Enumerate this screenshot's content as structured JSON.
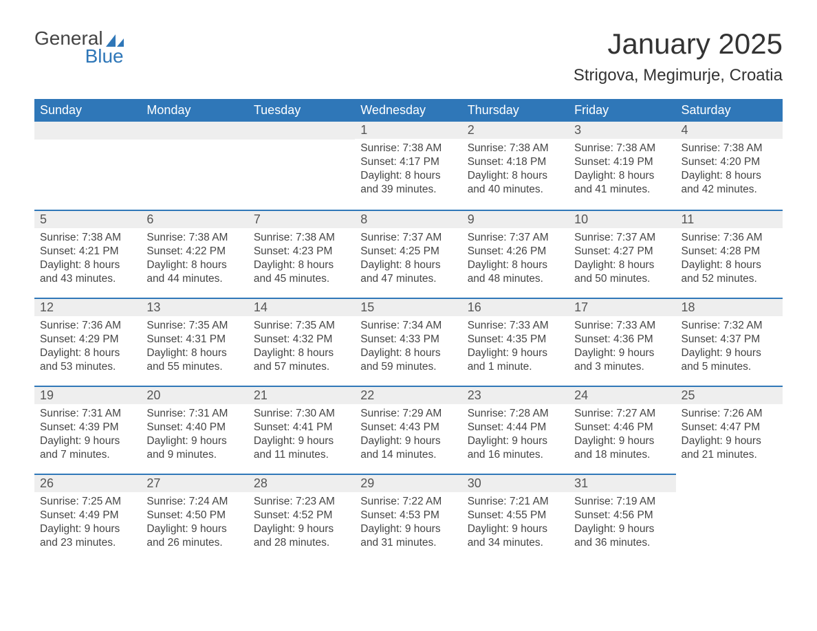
{
  "logo": {
    "top": "General",
    "bottom": "Blue"
  },
  "title": "January 2025",
  "location": "Strigova, Megimurje, Croatia",
  "colors": {
    "header_bg": "#2f77b8",
    "header_text": "#ffffff",
    "daynum_bg": "#eeeeee",
    "daynum_border": "#2f77b8",
    "text": "#444444",
    "title_text": "#333333",
    "background": "#ffffff"
  },
  "fonts": {
    "title_size": 42,
    "location_size": 24,
    "dayheader_size": 18,
    "daynum_size": 18,
    "body_size": 15.5
  },
  "day_names": [
    "Sunday",
    "Monday",
    "Tuesday",
    "Wednesday",
    "Thursday",
    "Friday",
    "Saturday"
  ],
  "weeks": [
    [
      null,
      null,
      null,
      {
        "n": "1",
        "sr": "7:38 AM",
        "ss": "4:17 PM",
        "dl": "8 hours and 39 minutes."
      },
      {
        "n": "2",
        "sr": "7:38 AM",
        "ss": "4:18 PM",
        "dl": "8 hours and 40 minutes."
      },
      {
        "n": "3",
        "sr": "7:38 AM",
        "ss": "4:19 PM",
        "dl": "8 hours and 41 minutes."
      },
      {
        "n": "4",
        "sr": "7:38 AM",
        "ss": "4:20 PM",
        "dl": "8 hours and 42 minutes."
      }
    ],
    [
      {
        "n": "5",
        "sr": "7:38 AM",
        "ss": "4:21 PM",
        "dl": "8 hours and 43 minutes."
      },
      {
        "n": "6",
        "sr": "7:38 AM",
        "ss": "4:22 PM",
        "dl": "8 hours and 44 minutes."
      },
      {
        "n": "7",
        "sr": "7:38 AM",
        "ss": "4:23 PM",
        "dl": "8 hours and 45 minutes."
      },
      {
        "n": "8",
        "sr": "7:37 AM",
        "ss": "4:25 PM",
        "dl": "8 hours and 47 minutes."
      },
      {
        "n": "9",
        "sr": "7:37 AM",
        "ss": "4:26 PM",
        "dl": "8 hours and 48 minutes."
      },
      {
        "n": "10",
        "sr": "7:37 AM",
        "ss": "4:27 PM",
        "dl": "8 hours and 50 minutes."
      },
      {
        "n": "11",
        "sr": "7:36 AM",
        "ss": "4:28 PM",
        "dl": "8 hours and 52 minutes."
      }
    ],
    [
      {
        "n": "12",
        "sr": "7:36 AM",
        "ss": "4:29 PM",
        "dl": "8 hours and 53 minutes."
      },
      {
        "n": "13",
        "sr": "7:35 AM",
        "ss": "4:31 PM",
        "dl": "8 hours and 55 minutes."
      },
      {
        "n": "14",
        "sr": "7:35 AM",
        "ss": "4:32 PM",
        "dl": "8 hours and 57 minutes."
      },
      {
        "n": "15",
        "sr": "7:34 AM",
        "ss": "4:33 PM",
        "dl": "8 hours and 59 minutes."
      },
      {
        "n": "16",
        "sr": "7:33 AM",
        "ss": "4:35 PM",
        "dl": "9 hours and 1 minute."
      },
      {
        "n": "17",
        "sr": "7:33 AM",
        "ss": "4:36 PM",
        "dl": "9 hours and 3 minutes."
      },
      {
        "n": "18",
        "sr": "7:32 AM",
        "ss": "4:37 PM",
        "dl": "9 hours and 5 minutes."
      }
    ],
    [
      {
        "n": "19",
        "sr": "7:31 AM",
        "ss": "4:39 PM",
        "dl": "9 hours and 7 minutes."
      },
      {
        "n": "20",
        "sr": "7:31 AM",
        "ss": "4:40 PM",
        "dl": "9 hours and 9 minutes."
      },
      {
        "n": "21",
        "sr": "7:30 AM",
        "ss": "4:41 PM",
        "dl": "9 hours and 11 minutes."
      },
      {
        "n": "22",
        "sr": "7:29 AM",
        "ss": "4:43 PM",
        "dl": "9 hours and 14 minutes."
      },
      {
        "n": "23",
        "sr": "7:28 AM",
        "ss": "4:44 PM",
        "dl": "9 hours and 16 minutes."
      },
      {
        "n": "24",
        "sr": "7:27 AM",
        "ss": "4:46 PM",
        "dl": "9 hours and 18 minutes."
      },
      {
        "n": "25",
        "sr": "7:26 AM",
        "ss": "4:47 PM",
        "dl": "9 hours and 21 minutes."
      }
    ],
    [
      {
        "n": "26",
        "sr": "7:25 AM",
        "ss": "4:49 PM",
        "dl": "9 hours and 23 minutes."
      },
      {
        "n": "27",
        "sr": "7:24 AM",
        "ss": "4:50 PM",
        "dl": "9 hours and 26 minutes."
      },
      {
        "n": "28",
        "sr": "7:23 AM",
        "ss": "4:52 PM",
        "dl": "9 hours and 28 minutes."
      },
      {
        "n": "29",
        "sr": "7:22 AM",
        "ss": "4:53 PM",
        "dl": "9 hours and 31 minutes."
      },
      {
        "n": "30",
        "sr": "7:21 AM",
        "ss": "4:55 PM",
        "dl": "9 hours and 34 minutes."
      },
      {
        "n": "31",
        "sr": "7:19 AM",
        "ss": "4:56 PM",
        "dl": "9 hours and 36 minutes."
      },
      null
    ]
  ],
  "labels": {
    "sunrise": "Sunrise: ",
    "sunset": "Sunset: ",
    "daylight": "Daylight: "
  }
}
